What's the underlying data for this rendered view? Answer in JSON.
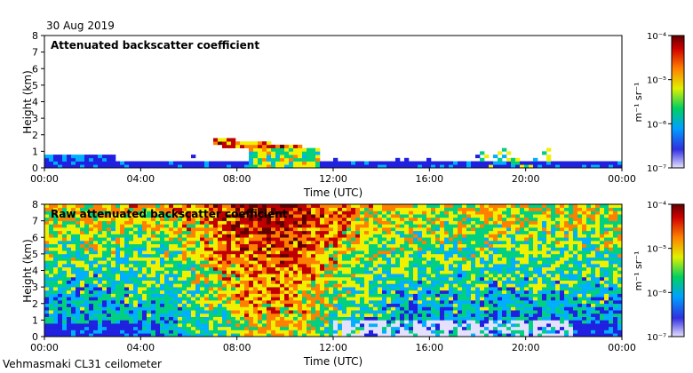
{
  "date": "30 Aug 2019",
  "footer": "Vehmasmaki CL31 ceilometer",
  "colors": {
    "scale": [
      "#e6e0ff",
      "#2020e0",
      "#00b0ff",
      "#00d080",
      "#f0f000",
      "#ff8000",
      "#c00000",
      "#600000"
    ],
    "background": "#ffffff"
  },
  "chart_data": [
    {
      "type": "heatmap",
      "title": "Attenuated backscatter coefficient",
      "xlabel": "Time (UTC)",
      "ylabel": "Height (km)",
      "x_ticks": [
        "00:00",
        "04:00",
        "08:00",
        "12:00",
        "16:00",
        "20:00",
        "00:00"
      ],
      "y_ticks": [
        "0",
        "1",
        "2",
        "3",
        "4",
        "5",
        "6",
        "7",
        "8"
      ],
      "xlim_hours": [
        0,
        24
      ],
      "ylim_km": [
        0,
        8
      ],
      "colorbar": {
        "label": "m⁻¹ sr⁻¹",
        "ticks": [
          "10⁻⁷",
          "10⁻⁶",
          "10⁻⁵",
          "10⁻⁴"
        ],
        "scale": "log",
        "range": [
          1e-07,
          0.0001
        ]
      }
    },
    {
      "type": "heatmap",
      "title": "Raw attenuated backscatter coefficient",
      "xlabel": "Time (UTC)",
      "ylabel": "Height (km)",
      "x_ticks": [
        "00:00",
        "04:00",
        "08:00",
        "12:00",
        "16:00",
        "20:00",
        "00:00"
      ],
      "y_ticks": [
        "0",
        "1",
        "2",
        "3",
        "4",
        "5",
        "6",
        "7",
        "8"
      ],
      "xlim_hours": [
        0,
        24
      ],
      "ylim_km": [
        0,
        8
      ],
      "colorbar": {
        "label": "m⁻¹ sr⁻¹",
        "ticks": [
          "10⁻⁷",
          "10⁻⁶",
          "10⁻⁵",
          "10⁻⁴"
        ],
        "scale": "log",
        "range": [
          1e-07,
          0.0001
        ]
      }
    }
  ]
}
